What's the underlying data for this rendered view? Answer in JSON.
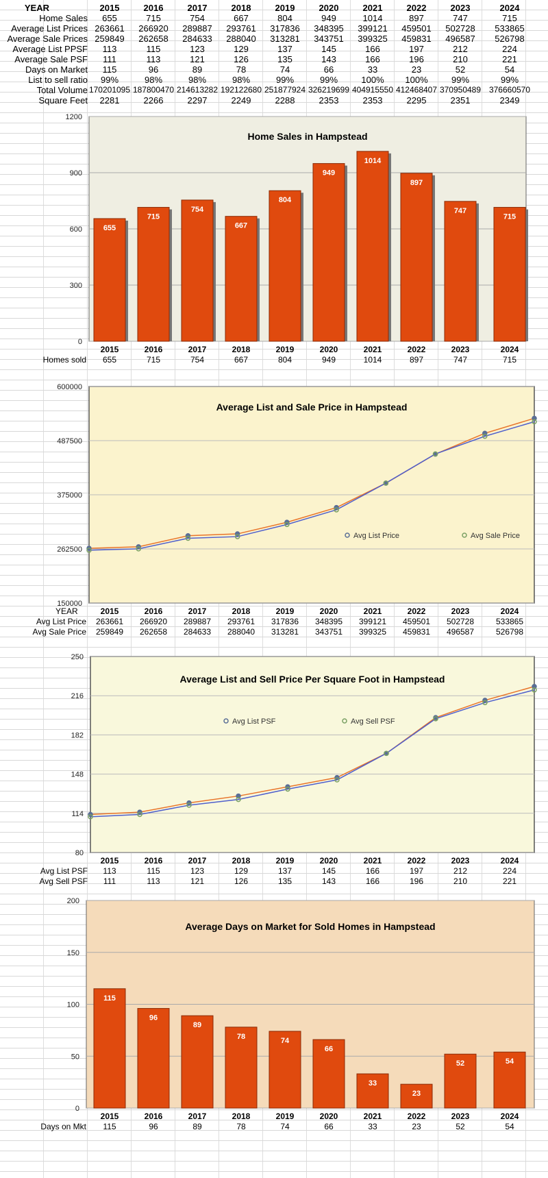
{
  "table": {
    "header_label": "YEAR",
    "years": [
      "2015",
      "2016",
      "2017",
      "2018",
      "2019",
      "2020",
      "2021",
      "2022",
      "2023",
      "2024"
    ],
    "rows": [
      {
        "label": "Home Sales",
        "values": [
          "655",
          "715",
          "754",
          "667",
          "804",
          "949",
          "1014",
          "897",
          "747",
          "715"
        ]
      },
      {
        "label": "Average List Prices",
        "values": [
          "263661",
          "266920",
          "289887",
          "293761",
          "317836",
          "348395",
          "399121",
          "459501",
          "502728",
          "533865"
        ]
      },
      {
        "label": "Average Sale Prices",
        "values": [
          "259849",
          "262658",
          "284633",
          "288040",
          "313281",
          "343751",
          "399325",
          "459831",
          "496587",
          "526798"
        ]
      },
      {
        "label": "Average List PPSF",
        "values": [
          "113",
          "115",
          "123",
          "129",
          "137",
          "145",
          "166",
          "197",
          "212",
          "224"
        ]
      },
      {
        "label": "Average Sale PSF",
        "values": [
          "111",
          "113",
          "121",
          "126",
          "135",
          "143",
          "166",
          "196",
          "210",
          "221"
        ]
      },
      {
        "label": "Days on Market",
        "values": [
          "115",
          "96",
          "89",
          "78",
          "74",
          "66",
          "33",
          "23",
          "52",
          "54"
        ]
      },
      {
        "label": "List to sell ratio",
        "values": [
          "99%",
          "98%",
          "98%",
          "98%",
          "99%",
          "99%",
          "100%",
          "100%",
          "99%",
          "99%"
        ]
      },
      {
        "label": "Total Volume",
        "values": [
          "170201095",
          "187800470",
          "214613282",
          "192122680",
          "251877924",
          "326219699",
          "404915550",
          "412468407",
          "370950489",
          "376660570"
        ]
      },
      {
        "label": "Square Feet",
        "values": [
          "2281",
          "2266",
          "2297",
          "2249",
          "2288",
          "2353",
          "2353",
          "2295",
          "2351",
          "2349"
        ]
      }
    ]
  },
  "chart_data": [
    {
      "type": "bar",
      "title": "Home Sales in Hampstead",
      "categories": [
        "2015",
        "2016",
        "2017",
        "2018",
        "2019",
        "2020",
        "2021",
        "2022",
        "2023",
        "2024"
      ],
      "values": [
        655,
        715,
        754,
        667,
        804,
        949,
        1014,
        897,
        747,
        715
      ],
      "ylim": [
        0,
        1200
      ],
      "yticks": [
        "0",
        "300",
        "600",
        "900",
        "1200"
      ],
      "grid": true,
      "bar_color": "#e04a0e",
      "background": "#efeee2",
      "table_row_label": "Homes sold",
      "table_values": [
        "655",
        "715",
        "754",
        "667",
        "804",
        "949",
        "1014",
        "897",
        "747",
        "715"
      ]
    },
    {
      "type": "line",
      "title": "Average List and Sale Price in Hampstead",
      "x": [
        "2015",
        "2016",
        "2017",
        "2018",
        "2019",
        "2020",
        "2021",
        "2022",
        "2023",
        "2024"
      ],
      "series": [
        {
          "name": "Avg List Price",
          "values": [
            263661,
            266920,
            289887,
            293761,
            317836,
            348395,
            399121,
            459501,
            502728,
            533865
          ],
          "color": "#e8742a",
          "marker": "#5a6e96"
        },
        {
          "name": "Avg Sale Price",
          "values": [
            259849,
            262658,
            284633,
            288040,
            313281,
            343751,
            399325,
            459831,
            496587,
            526798
          ],
          "color": "#4f5fcc",
          "marker": "#7aa064"
        }
      ],
      "ylim": [
        150000,
        600000
      ],
      "yticks": [
        "150000",
        "262500",
        "375000",
        "487500",
        "600000"
      ],
      "grid": true,
      "legend": "right-middle",
      "background": "#fbf3cd",
      "table_header": "YEAR",
      "table_rows": [
        {
          "label": "Avg List Price",
          "values": [
            "263661",
            "266920",
            "289887",
            "293761",
            "317836",
            "348395",
            "399121",
            "459501",
            "502728",
            "533865"
          ]
        },
        {
          "label": "Avg Sale Price",
          "values": [
            "259849",
            "262658",
            "284633",
            "288040",
            "313281",
            "343751",
            "399325",
            "459831",
            "496587",
            "526798"
          ]
        }
      ]
    },
    {
      "type": "line",
      "title": "Average List and Sell Price Per Square Foot in Hampstead",
      "x": [
        "2015",
        "2016",
        "2017",
        "2018",
        "2019",
        "2020",
        "2021",
        "2022",
        "2023",
        "2024"
      ],
      "series": [
        {
          "name": "Avg List PSF",
          "values": [
            113,
            115,
            123,
            129,
            137,
            145,
            166,
            197,
            212,
            224
          ],
          "color": "#e8742a",
          "marker": "#5a6e96"
        },
        {
          "name": "Avg Sell PSF",
          "values": [
            111,
            113,
            121,
            126,
            135,
            143,
            166,
            196,
            210,
            221
          ],
          "color": "#4f5fcc",
          "marker": "#7aa064"
        }
      ],
      "ylim": [
        80,
        250
      ],
      "yticks": [
        "80",
        "114",
        "148",
        "182",
        "216",
        "250"
      ],
      "grid": true,
      "legend": "top-middle",
      "background": "#f9f8dc",
      "table_rows": [
        {
          "label": "Avg List PSF",
          "values": [
            "113",
            "115",
            "123",
            "129",
            "137",
            "145",
            "166",
            "197",
            "212",
            "224"
          ]
        },
        {
          "label": "Avg Sell PSF",
          "values": [
            "111",
            "113",
            "121",
            "126",
            "135",
            "143",
            "166",
            "196",
            "210",
            "221"
          ]
        }
      ]
    },
    {
      "type": "bar",
      "title": "Average Days on Market for Sold Homes in Hampstead",
      "categories": [
        "2015",
        "2016",
        "2017",
        "2018",
        "2019",
        "2020",
        "2021",
        "2022",
        "2023",
        "2024"
      ],
      "values": [
        115,
        96,
        89,
        78,
        74,
        66,
        33,
        23,
        52,
        54
      ],
      "ylim": [
        0,
        200
      ],
      "yticks": [
        "0",
        "50",
        "100",
        "150",
        "200"
      ],
      "grid": true,
      "bar_color": "#e04a0e",
      "background": "#f5dbba",
      "table_row_label": "Days on Mkt",
      "table_values": [
        "115",
        "96",
        "89",
        "78",
        "74",
        "66",
        "33",
        "23",
        "52",
        "54"
      ]
    }
  ]
}
